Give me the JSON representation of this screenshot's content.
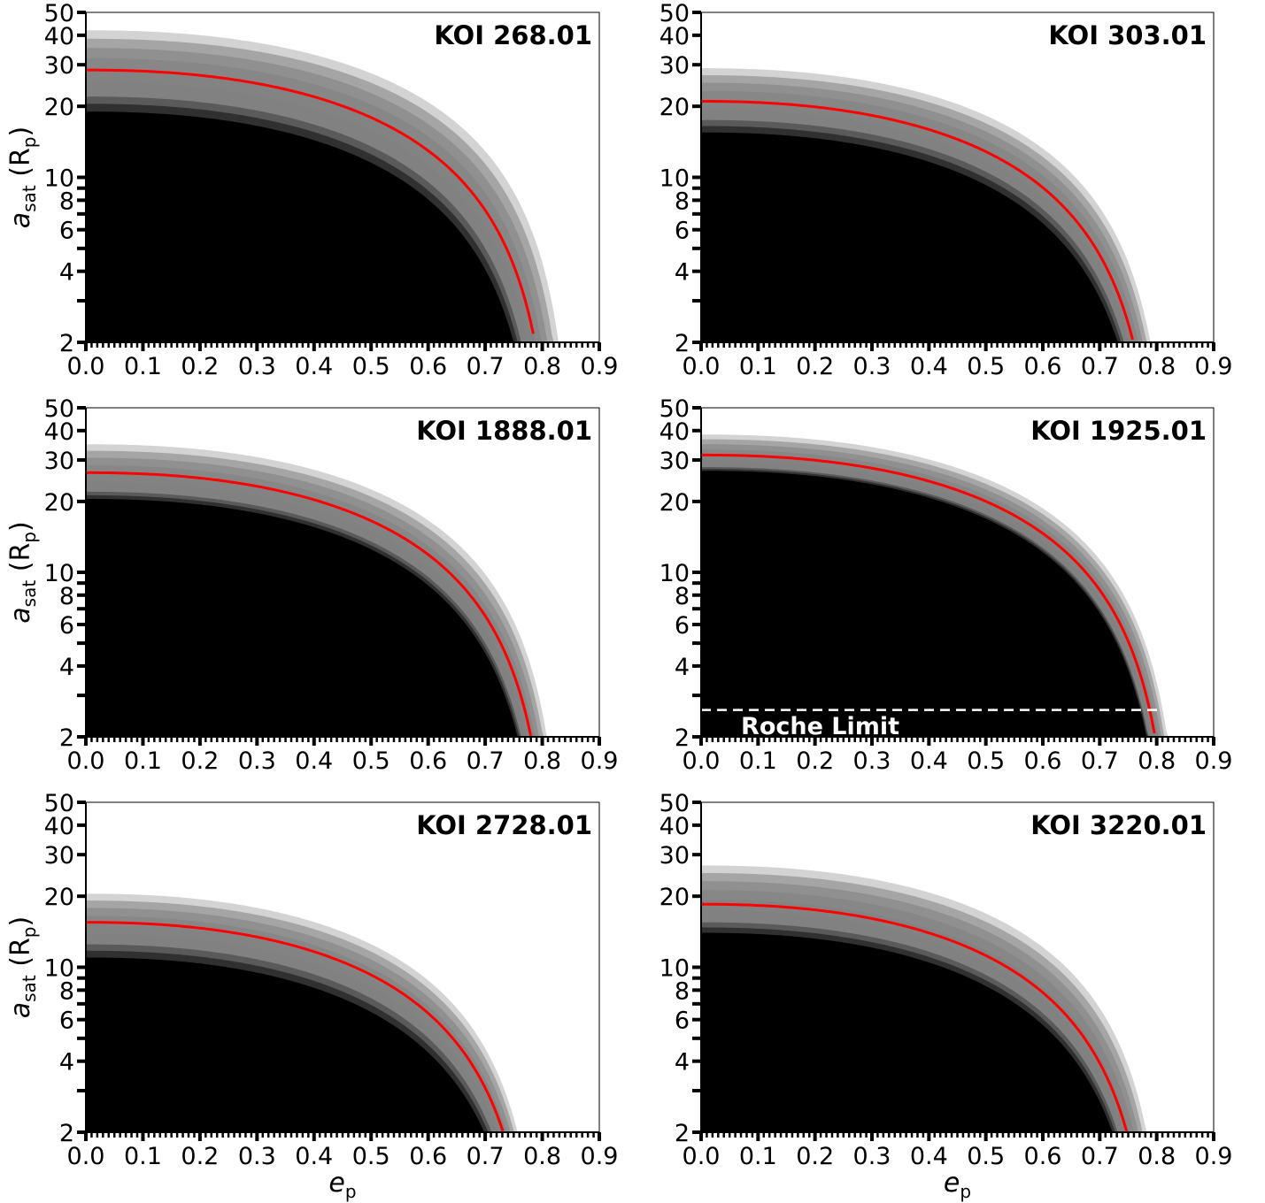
{
  "figure": {
    "xlabel_main": "e",
    "xlabel_sub": "p",
    "ylabel_main": "a",
    "ylabel_sub": "sat",
    "ylabel_unit_open": " (R",
    "ylabel_unit_sub": "p",
    "ylabel_unit_close": ")"
  },
  "chart_data": [
    {
      "type": "area",
      "title": "KOI 268.01",
      "xlim": [
        0.0,
        0.9
      ],
      "ylim": [
        2,
        50
      ],
      "yscale": "log",
      "xticks": [
        "0.0",
        "0.1",
        "0.2",
        "0.3",
        "0.4",
        "0.5",
        "0.6",
        "0.7",
        "0.8",
        "0.9"
      ],
      "yticks": [
        "50",
        "40",
        "30",
        "20",
        "10",
        "8",
        "6",
        "4",
        "2"
      ],
      "series": [
        {
          "role": "lower_edge",
          "y0": 19.0,
          "color": "#000000"
        },
        {
          "role": "band_inner",
          "y0": 22.0,
          "color": "#555555"
        },
        {
          "role": "median",
          "y0": 28.5,
          "color": "#ff0000"
        },
        {
          "role": "upper_edge",
          "y0": 42.0,
          "color": "#888888"
        }
      ],
      "grid": false
    },
    {
      "type": "area",
      "title": "KOI 303.01",
      "xlim": [
        0.0,
        0.9
      ],
      "ylim": [
        2,
        50
      ],
      "yscale": "log",
      "xticks": [
        "0.0",
        "0.1",
        "0.2",
        "0.3",
        "0.4",
        "0.5",
        "0.6",
        "0.7",
        "0.8",
        "0.9"
      ],
      "yticks": [
        "50",
        "40",
        "30",
        "20",
        "10",
        "8",
        "6",
        "4",
        "2"
      ],
      "series": [
        {
          "role": "lower_edge",
          "y0": 15.5,
          "color": "#000000"
        },
        {
          "role": "band_inner",
          "y0": 17.5,
          "color": "#555555"
        },
        {
          "role": "median",
          "y0": 21.0,
          "color": "#ff0000"
        },
        {
          "role": "upper_edge",
          "y0": 29.0,
          "color": "#888888"
        }
      ],
      "grid": false
    },
    {
      "type": "area",
      "title": "KOI 1888.01",
      "xlim": [
        0.0,
        0.9
      ],
      "ylim": [
        2,
        50
      ],
      "yscale": "log",
      "xticks": [
        "0.0",
        "0.1",
        "0.2",
        "0.3",
        "0.4",
        "0.5",
        "0.6",
        "0.7",
        "0.8",
        "0.9"
      ],
      "yticks": [
        "50",
        "40",
        "30",
        "20",
        "10",
        "8",
        "6",
        "4",
        "2"
      ],
      "series": [
        {
          "role": "lower_edge",
          "y0": 20.5,
          "color": "#000000"
        },
        {
          "role": "band_inner",
          "y0": 22.0,
          "color": "#555555"
        },
        {
          "role": "median",
          "y0": 26.5,
          "color": "#ff0000"
        },
        {
          "role": "upper_edge",
          "y0": 35.0,
          "color": "#888888"
        }
      ],
      "grid": false
    },
    {
      "type": "area",
      "title": "KOI 1925.01",
      "xlim": [
        0.0,
        0.9
      ],
      "ylim": [
        2,
        50
      ],
      "yscale": "log",
      "xticks": [
        "0.0",
        "0.1",
        "0.2",
        "0.3",
        "0.4",
        "0.5",
        "0.6",
        "0.7",
        "0.8",
        "0.9"
      ],
      "yticks": [
        "50",
        "40",
        "30",
        "20",
        "10",
        "8",
        "6",
        "4",
        "2"
      ],
      "series": [
        {
          "role": "lower_edge",
          "y0": 27.0,
          "color": "#000000"
        },
        {
          "role": "band_inner",
          "y0": 28.0,
          "color": "#555555"
        },
        {
          "role": "median",
          "y0": 31.5,
          "color": "#ff0000"
        },
        {
          "role": "upper_edge",
          "y0": 38.5,
          "color": "#888888"
        }
      ],
      "roche_limit": {
        "label": "Roche Limit",
        "y": 2.6
      },
      "grid": false
    },
    {
      "type": "area",
      "title": "KOI 2728.01",
      "xlim": [
        0.0,
        0.9
      ],
      "ylim": [
        2,
        50
      ],
      "yscale": "log",
      "xticks": [
        "0.0",
        "0.1",
        "0.2",
        "0.3",
        "0.4",
        "0.5",
        "0.6",
        "0.7",
        "0.8",
        "0.9"
      ],
      "yticks": [
        "50",
        "40",
        "30",
        "20",
        "10",
        "8",
        "6",
        "4",
        "2"
      ],
      "series": [
        {
          "role": "lower_edge",
          "y0": 11.0,
          "color": "#000000"
        },
        {
          "role": "band_inner",
          "y0": 12.5,
          "color": "#555555"
        },
        {
          "role": "median",
          "y0": 15.5,
          "color": "#ff0000"
        },
        {
          "role": "upper_edge",
          "y0": 20.5,
          "color": "#888888"
        }
      ],
      "grid": false
    },
    {
      "type": "area",
      "title": "KOI 3220.01",
      "xlim": [
        0.0,
        0.9
      ],
      "ylim": [
        2,
        50
      ],
      "yscale": "log",
      "xticks": [
        "0.0",
        "0.1",
        "0.2",
        "0.3",
        "0.4",
        "0.5",
        "0.6",
        "0.7",
        "0.8",
        "0.9"
      ],
      "yticks": [
        "50",
        "40",
        "30",
        "20",
        "10",
        "8",
        "6",
        "4",
        "2"
      ],
      "series": [
        {
          "role": "lower_edge",
          "y0": 14.0,
          "color": "#000000"
        },
        {
          "role": "band_inner",
          "y0": 15.5,
          "color": "#555555"
        },
        {
          "role": "median",
          "y0": 18.5,
          "color": "#ff0000"
        },
        {
          "role": "upper_edge",
          "y0": 27.0,
          "color": "#888888"
        }
      ],
      "grid": false
    }
  ]
}
